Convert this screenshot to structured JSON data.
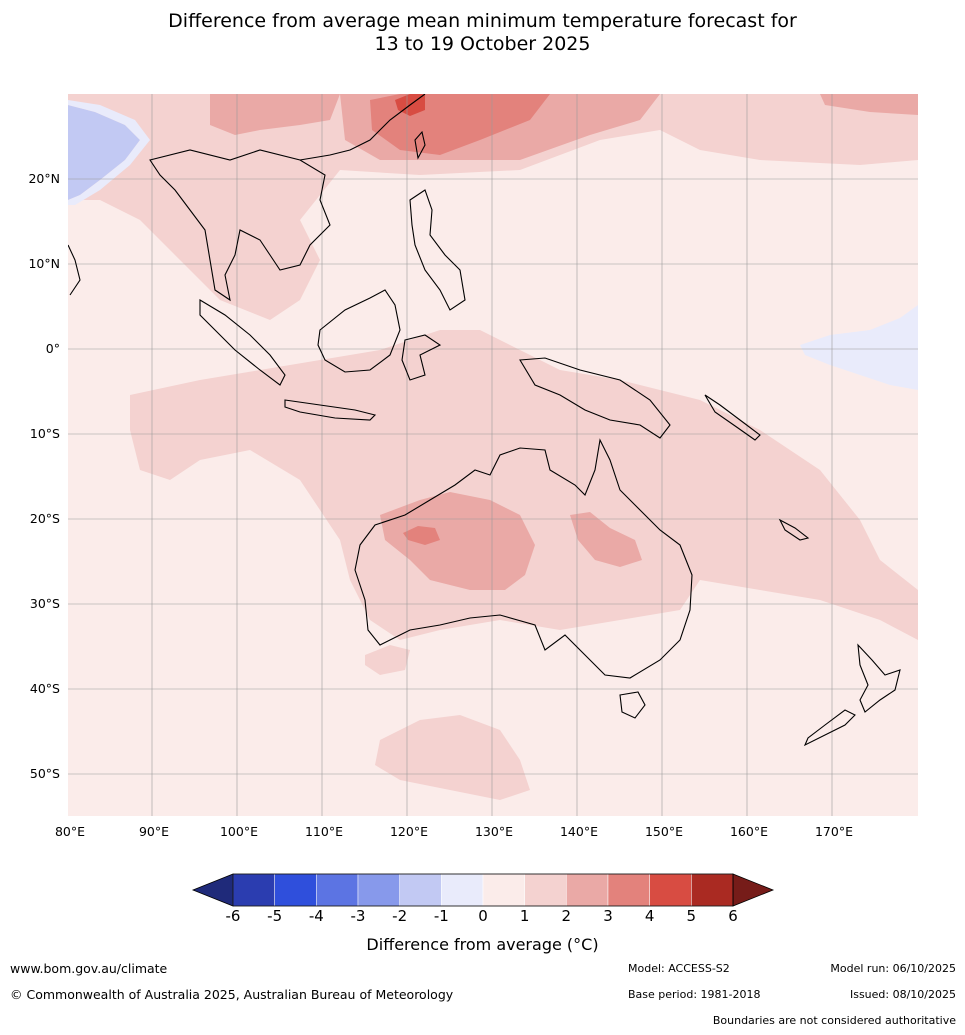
{
  "title_line1": "Difference from average mean minimum temperature forecast for",
  "title_line2": "13 to 19 October 2025",
  "latitude_labels": [
    "20°N",
    "10°N",
    "0°",
    "10°S",
    "20°S",
    "30°S",
    "40°S",
    "50°S"
  ],
  "longitude_labels": [
    "80°E",
    "90°E",
    "100°E",
    "110°E",
    "120°E",
    "130°E",
    "140°E",
    "150°E",
    "160°E",
    "170°E"
  ],
  "colorbar": {
    "ticks": [
      "-6",
      "-5",
      "-4",
      "-3",
      "-2",
      "-1",
      "0",
      "1",
      "2",
      "3",
      "4",
      "5",
      "6"
    ],
    "colors": [
      "#1f2a7a",
      "#2b3db0",
      "#2f4fdc",
      "#5c74e3",
      "#8799eb",
      "#c2c9f3",
      "#e9ebfb",
      "#fbecea",
      "#f4d2d0",
      "#eaa9a6",
      "#e3827c",
      "#d84c42",
      "#aa2a22",
      "#761c19"
    ],
    "label": "Difference from average (°C)"
  },
  "footer": {
    "website": "www.bom.gov.au/climate",
    "copyright": "© Commonwealth of Australia 2025, Australian Bureau of Meteorology",
    "model": "Model: ACCESS-S2",
    "base_period": "Base period: 1981-2018",
    "model_run": "Model run: 06/10/2025",
    "issued": "Issued: 08/10/2025",
    "disclaimer": "Boundaries are not considered authoritative"
  }
}
